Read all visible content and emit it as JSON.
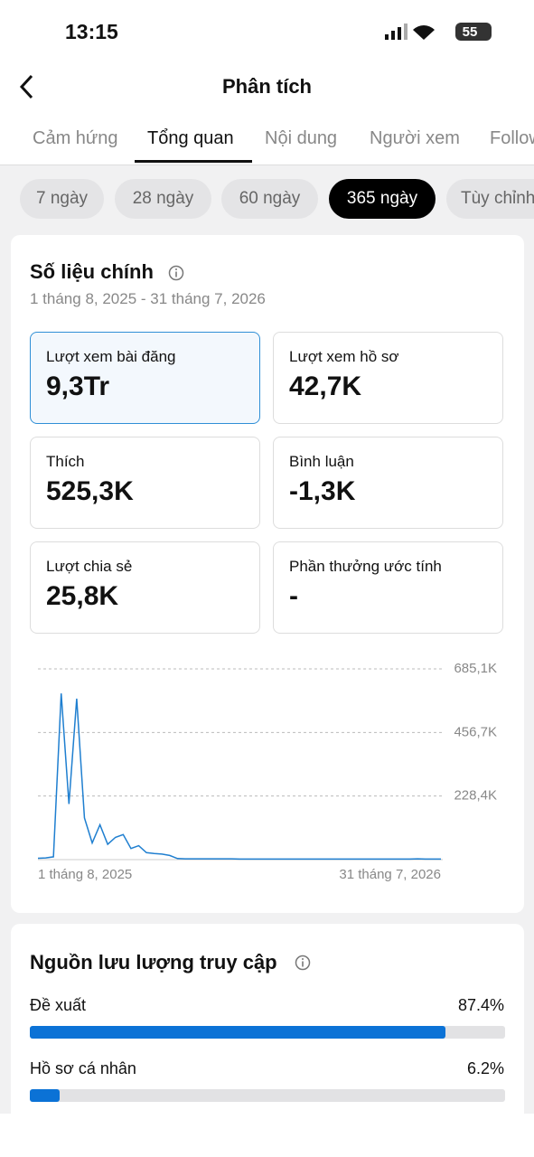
{
  "status_bar": {
    "time": "13:15",
    "battery": "55"
  },
  "header": {
    "title": "Phân tích"
  },
  "tabs": [
    "Cảm hứng",
    "Tổng quan",
    "Nội dung",
    "Người xem",
    "Follower"
  ],
  "periods": [
    "7 ngày",
    "28 ngày",
    "60 ngày",
    "365 ngày",
    "Tùy chỉnh"
  ],
  "key_metrics": {
    "title": "Số liệu chính",
    "date_range": "1 tháng 8, 2025 - 31 tháng 7, 2026",
    "cards": [
      {
        "label": "Lượt xem bài đăng",
        "value": "9,3Tr"
      },
      {
        "label": "Lượt xem hồ sơ",
        "value": "42,7K"
      },
      {
        "label": "Thích",
        "value": "525,3K"
      },
      {
        "label": "Bình luận",
        "value": "-1,3K"
      },
      {
        "label": "Lượt chia sẻ",
        "value": "25,8K"
      },
      {
        "label": "Phần thưởng ước tính",
        "value": "-"
      }
    ]
  },
  "chart": {
    "type": "line",
    "color": "#1f7fd0",
    "ylim": [
      0,
      685.1
    ],
    "yticks": [
      {
        "value": 228.4,
        "label": "228,4K"
      },
      {
        "value": 456.7,
        "label": "456,7K"
      },
      {
        "value": 685.1,
        "label": "685,1K"
      }
    ],
    "x_labels": [
      "1 tháng 8, 2025",
      "31 tháng 7, 2026"
    ],
    "values": [
      5,
      6,
      10,
      597,
      200,
      578,
      150,
      60,
      125,
      55,
      80,
      90,
      40,
      50,
      25,
      22,
      20,
      15,
      4,
      3,
      3,
      3,
      3,
      3,
      3,
      3,
      2,
      2,
      2,
      2,
      2,
      2,
      2,
      2,
      2,
      2,
      2,
      2,
      2,
      2,
      2,
      2,
      2,
      2,
      2,
      2,
      2,
      2,
      2,
      3,
      2,
      2,
      2
    ]
  },
  "traffic": {
    "title": "Nguồn lưu lượng truy cập",
    "items": [
      {
        "name": "Đề xuất",
        "value": 87.4,
        "value_label": "87.4%"
      },
      {
        "name": "Hồ sơ cá nhân",
        "value": 6.2,
        "value_label": "6.2%"
      }
    ]
  }
}
